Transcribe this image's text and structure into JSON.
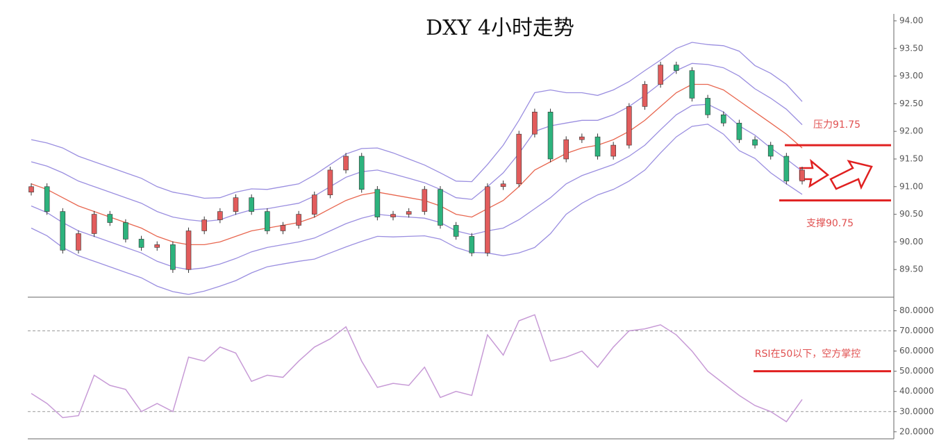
{
  "chart_data": [
    {
      "type": "candlestick",
      "title": "DXY 4小时走势",
      "open": [
        90.9,
        91.0,
        90.55,
        89.85,
        90.15,
        90.5,
        90.35,
        90.05,
        89.9,
        89.95,
        89.5,
        90.2,
        90.4,
        90.55,
        90.8,
        90.55,
        90.2,
        90.3,
        90.5,
        90.85,
        91.3,
        91.55,
        90.95,
        90.45,
        90.5,
        90.55,
        90.95,
        90.3,
        90.1,
        89.8,
        91.0,
        91.05,
        91.95,
        92.35,
        91.5,
        91.85,
        91.9,
        91.55,
        91.75,
        92.45,
        92.85,
        93.2,
        93.1,
        92.6,
        92.3,
        92.15,
        91.85,
        91.75,
        91.55,
        91.1
      ],
      "high": [
        91.06,
        91.06,
        90.61,
        90.21,
        90.56,
        90.56,
        90.41,
        90.11,
        90.01,
        90.01,
        90.26,
        90.46,
        90.61,
        90.86,
        90.86,
        90.61,
        90.36,
        90.56,
        90.91,
        91.36,
        91.61,
        91.61,
        91.01,
        90.56,
        90.61,
        91.01,
        91.01,
        90.36,
        90.16,
        91.06,
        91.11,
        92.01,
        92.41,
        92.41,
        91.91,
        91.96,
        91.96,
        91.81,
        92.51,
        92.91,
        93.26,
        93.26,
        93.16,
        92.66,
        92.36,
        92.21,
        91.91,
        91.81,
        91.61,
        91.36
      ],
      "low": [
        90.84,
        90.49,
        89.79,
        89.79,
        90.09,
        90.29,
        89.99,
        89.84,
        89.84,
        89.44,
        89.44,
        90.14,
        90.34,
        90.49,
        90.49,
        90.14,
        90.14,
        90.24,
        90.44,
        90.79,
        91.24,
        90.89,
        90.39,
        90.39,
        90.44,
        90.49,
        90.24,
        90.04,
        89.74,
        89.74,
        90.94,
        90.99,
        91.89,
        91.44,
        91.44,
        91.79,
        91.49,
        91.49,
        91.69,
        92.39,
        92.79,
        93.04,
        92.54,
        92.24,
        92.09,
        91.79,
        91.69,
        91.49,
        91.04,
        91.04
      ],
      "close": [
        91.0,
        90.55,
        89.85,
        90.15,
        90.5,
        90.35,
        90.05,
        89.9,
        89.95,
        89.5,
        90.2,
        90.4,
        90.55,
        90.8,
        90.55,
        90.2,
        90.3,
        90.5,
        90.85,
        91.3,
        91.55,
        90.95,
        90.45,
        90.5,
        90.55,
        90.95,
        90.3,
        90.1,
        89.8,
        91.0,
        91.05,
        91.95,
        92.35,
        91.5,
        91.85,
        91.9,
        91.55,
        91.75,
        92.45,
        92.85,
        93.2,
        93.1,
        92.6,
        92.3,
        92.15,
        91.85,
        91.75,
        91.55,
        91.1,
        91.3
      ],
      "up_color": "#e25c5c",
      "down_color": "#2db37d",
      "bands": [
        {
          "color": "#9a8ee0",
          "values": [
            91.85,
            91.79,
            91.7,
            91.55,
            91.45,
            91.35,
            91.25,
            91.15,
            91.0,
            90.9,
            90.85,
            90.79,
            90.8,
            90.9,
            90.96,
            90.95,
            91.0,
            91.05,
            91.21,
            91.4,
            91.59,
            91.69,
            91.7,
            91.61,
            91.5,
            91.39,
            91.25,
            91.1,
            91.09,
            91.4,
            91.75,
            92.2,
            92.7,
            92.75,
            92.7,
            92.7,
            92.65,
            92.75,
            92.9,
            93.1,
            93.29,
            93.5,
            93.61,
            93.57,
            93.55,
            93.45,
            93.19,
            93.05,
            92.85,
            92.54
          ]
        },
        {
          "color": "#9a8ee0",
          "values": [
            91.45,
            91.37,
            91.25,
            91.1,
            91.0,
            90.9,
            90.8,
            90.7,
            90.55,
            90.45,
            90.4,
            90.37,
            90.4,
            90.5,
            90.58,
            90.6,
            90.65,
            90.7,
            90.83,
            91.0,
            91.17,
            91.27,
            91.3,
            91.23,
            91.15,
            91.07,
            90.95,
            90.8,
            90.77,
            91.0,
            91.25,
            91.6,
            92.0,
            92.1,
            92.15,
            92.2,
            92.2,
            92.3,
            92.45,
            92.65,
            92.87,
            93.1,
            93.23,
            93.21,
            93.15,
            93.0,
            92.77,
            92.6,
            92.4,
            92.12
          ]
        },
        {
          "color": "#e8664f",
          "values": [
            91.05,
            90.95,
            90.8,
            90.65,
            90.55,
            90.45,
            90.35,
            90.25,
            90.1,
            90.0,
            89.95,
            89.95,
            90.0,
            90.1,
            90.2,
            90.25,
            90.3,
            90.35,
            90.45,
            90.6,
            90.75,
            90.85,
            90.9,
            90.85,
            90.8,
            90.75,
            90.65,
            90.5,
            90.45,
            90.6,
            90.75,
            91.0,
            91.3,
            91.45,
            91.6,
            91.7,
            91.75,
            91.85,
            92.0,
            92.2,
            92.45,
            92.7,
            92.85,
            92.85,
            92.75,
            92.55,
            92.35,
            92.15,
            91.95,
            91.7
          ]
        },
        {
          "color": "#9a8ee0",
          "values": [
            90.65,
            90.53,
            90.35,
            90.2,
            90.1,
            90.0,
            89.9,
            89.8,
            89.65,
            89.55,
            89.5,
            89.53,
            89.6,
            89.7,
            89.82,
            89.9,
            89.95,
            90.0,
            90.07,
            90.2,
            90.33,
            90.43,
            90.5,
            90.47,
            90.45,
            90.43,
            90.35,
            90.2,
            90.13,
            90.2,
            90.25,
            90.4,
            90.6,
            90.8,
            91.05,
            91.2,
            91.3,
            91.4,
            91.55,
            91.75,
            92.03,
            92.3,
            92.47,
            92.49,
            92.35,
            92.1,
            91.93,
            91.7,
            91.5,
            91.28
          ]
        },
        {
          "color": "#9a8ee0",
          "values": [
            90.25,
            90.11,
            89.9,
            89.75,
            89.65,
            89.55,
            89.45,
            89.35,
            89.2,
            89.1,
            89.05,
            89.11,
            89.2,
            89.3,
            89.44,
            89.55,
            89.6,
            89.65,
            89.69,
            89.8,
            89.91,
            90.01,
            90.1,
            90.09,
            90.1,
            90.11,
            90.05,
            89.9,
            89.81,
            89.8,
            89.75,
            89.8,
            89.9,
            90.15,
            90.5,
            90.7,
            90.85,
            90.95,
            91.1,
            91.3,
            91.61,
            91.9,
            92.09,
            92.13,
            91.95,
            91.65,
            91.51,
            91.25,
            91.05,
            90.86
          ]
        }
      ],
      "ylim": [
        89.0,
        94.1
      ],
      "yticks": [
        {
          "value": 94,
          "label": "94.00"
        },
        {
          "value": 93.5,
          "label": "93.50"
        },
        {
          "value": 93,
          "label": "93.00"
        },
        {
          "value": 92.5,
          "label": "92.50"
        },
        {
          "value": 92,
          "label": "92.00"
        },
        {
          "value": 91.5,
          "label": "91.50"
        },
        {
          "value": 91,
          "label": "91.00"
        },
        {
          "value": 90.5,
          "label": "90.50"
        },
        {
          "value": 90,
          "label": "90.00"
        },
        {
          "value": 89.5,
          "label": "89.50"
        }
      ],
      "annotations": [
        {
          "text": "压力91.75",
          "value": 91.75
        },
        {
          "text": "支撑90.75",
          "value": 90.75
        }
      ]
    },
    {
      "type": "line",
      "color": "#c79ad6",
      "values": [
        39,
        34,
        27,
        28,
        48,
        43,
        41,
        30,
        34,
        30,
        57,
        55,
        62,
        59,
        45,
        48,
        47,
        55,
        62,
        66,
        72,
        55,
        42,
        44,
        43,
        52,
        37,
        40,
        38,
        68,
        58,
        75,
        78,
        55,
        57,
        60,
        52,
        62,
        70,
        71,
        73,
        68,
        60,
        50,
        44,
        38,
        33,
        30,
        25,
        36
      ],
      "levels": [
        70,
        30
      ],
      "ylim": [
        16.5,
        86
      ],
      "yticks": [
        {
          "value": 80,
          "label": "80.0000"
        },
        {
          "value": 70,
          "label": "70.0000"
        },
        {
          "value": 60,
          "label": "60.0000"
        },
        {
          "value": 50,
          "label": "50.0000"
        },
        {
          "value": 40,
          "label": "40.0000"
        },
        {
          "value": 30,
          "label": "30.0000"
        },
        {
          "value": 20,
          "label": "20.0000"
        }
      ],
      "annotations": [
        {
          "text": "RSI在50以下，空方掌控",
          "value": 50
        }
      ]
    }
  ]
}
